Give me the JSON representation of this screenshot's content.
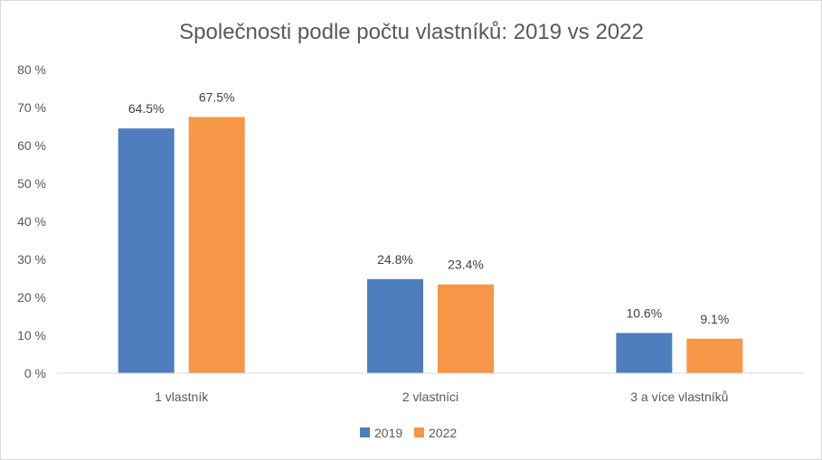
{
  "chart_data": {
    "type": "bar",
    "title": "Společnosti podle počtu vlastníků: 2019 vs 2022",
    "categories": [
      "1 vlastník",
      "2 vlastníci",
      "3 a více vlastníků"
    ],
    "series": [
      {
        "name": "2019",
        "color": "#4e7ebd",
        "values": [
          64.5,
          24.8,
          10.6
        ],
        "labels": [
          "64.5%",
          "24.8%",
          "10.6%"
        ]
      },
      {
        "name": "2022",
        "color": "#f79646",
        "values": [
          67.5,
          23.4,
          9.1
        ],
        "labels": [
          "67.5%",
          "23.4%",
          "9.1%"
        ]
      }
    ],
    "ylim": [
      0,
      80
    ],
    "yticks": [
      0,
      10,
      20,
      30,
      40,
      50,
      60,
      70,
      80
    ],
    "ytick_labels": [
      "0 %",
      "10 %",
      "20 %",
      "30 %",
      "40 %",
      "50 %",
      "60 %",
      "70 %",
      "80 %"
    ],
    "xlabel": "",
    "ylabel": "",
    "grid": false,
    "legend_position": "bottom"
  }
}
